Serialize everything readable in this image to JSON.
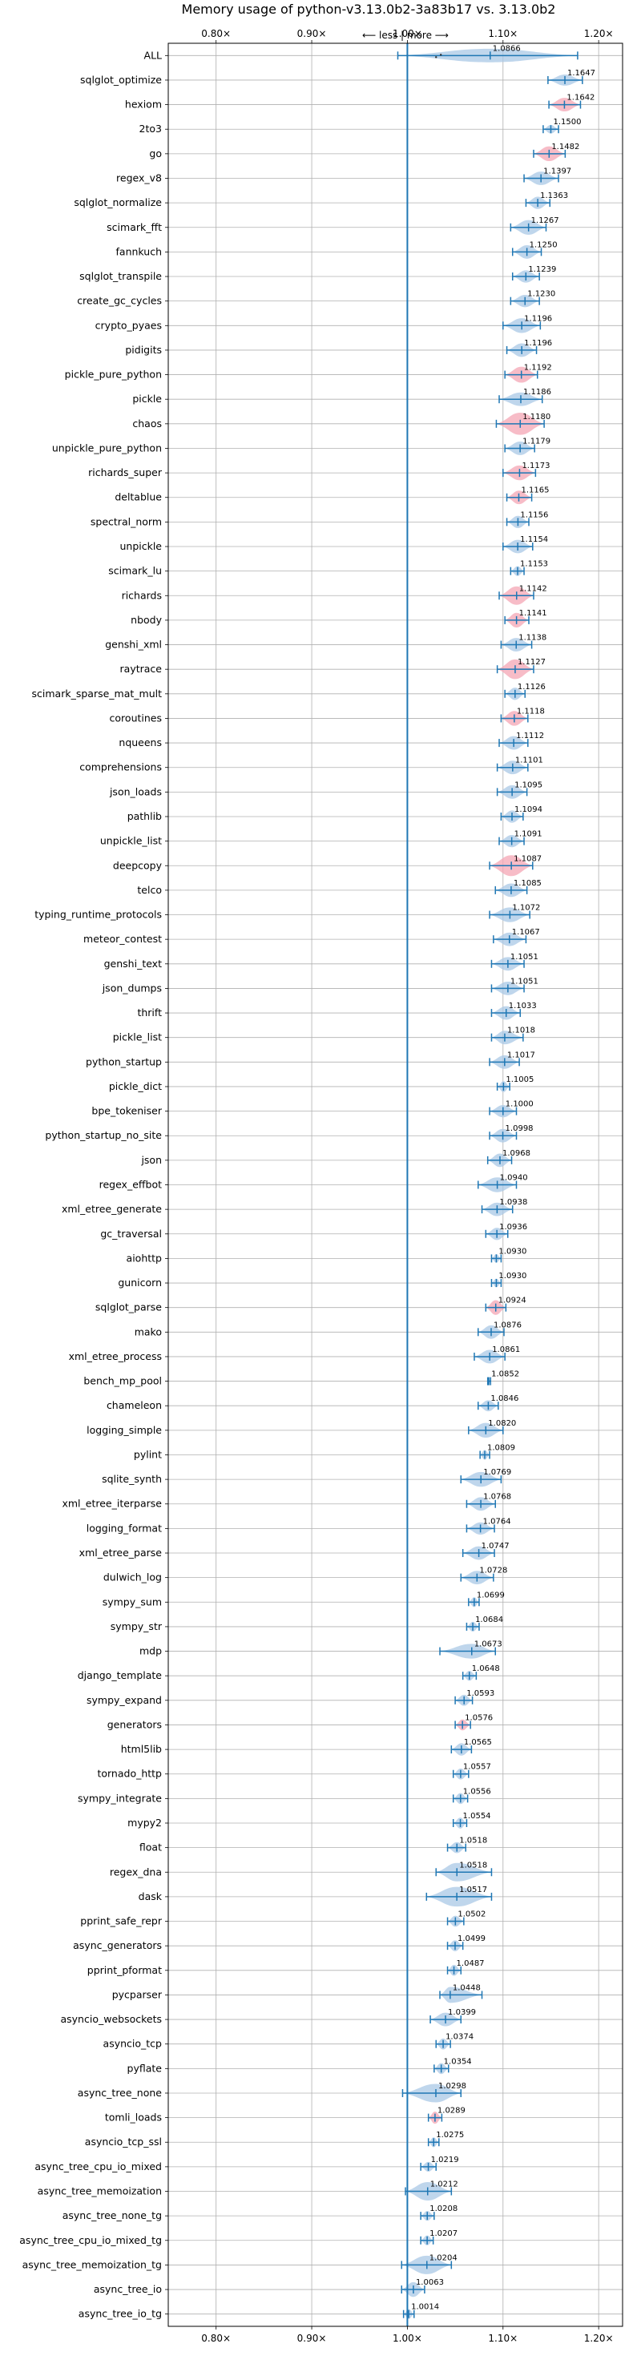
{
  "chart_data": {
    "type": "violin",
    "title": "Memory usage of python-v3.13.0b2-3a83b17 vs. 3.13.0b2",
    "axis_annotation": "⟵ less  |  more ⟶",
    "xlim": [
      0.75,
      1.225
    ],
    "x_ticks": [
      0.8,
      0.9,
      1.0,
      1.1,
      1.2
    ],
    "x_tick_labels": [
      "0.80×",
      "0.90×",
      "1.00×",
      "1.10×",
      "1.20×"
    ],
    "reference_line": 1.0,
    "grid": true,
    "colors": {
      "violin_blue": "#a9c8e6",
      "violin_red": "#f4a6b4",
      "stroke": "#1f77b4",
      "grid": "#b0b0b0"
    },
    "benchmarks": [
      {
        "name": "ALL",
        "value": 1.0866,
        "lo": 0.99,
        "hi": 1.178,
        "width": 0.55,
        "color": "blue",
        "label": "1.0866"
      },
      {
        "name": "sqlglot_optimize",
        "value": 1.1647,
        "lo": 1.147,
        "hi": 1.183,
        "width": 0.45,
        "color": "blue",
        "label": "1.1647"
      },
      {
        "name": "hexiom",
        "value": 1.1642,
        "lo": 1.148,
        "hi": 1.181,
        "width": 0.55,
        "color": "red",
        "label": "1.1642"
      },
      {
        "name": "2to3",
        "value": 1.15,
        "lo": 1.142,
        "hi": 1.158,
        "width": 0.35,
        "color": "blue",
        "label": "1.1500"
      },
      {
        "name": "go",
        "value": 1.1482,
        "lo": 1.132,
        "hi": 1.165,
        "width": 0.6,
        "color": "red",
        "label": "1.1482"
      },
      {
        "name": "regex_v8",
        "value": 1.1397,
        "lo": 1.122,
        "hi": 1.158,
        "width": 0.55,
        "color": "blue",
        "label": "1.1397"
      },
      {
        "name": "sqlglot_normalize",
        "value": 1.1363,
        "lo": 1.124,
        "hi": 1.149,
        "width": 0.5,
        "color": "blue",
        "label": "1.1363"
      },
      {
        "name": "scimark_fft",
        "value": 1.1267,
        "lo": 1.108,
        "hi": 1.145,
        "width": 0.6,
        "color": "blue",
        "label": "1.1267"
      },
      {
        "name": "fannkuch",
        "value": 1.125,
        "lo": 1.11,
        "hi": 1.14,
        "width": 0.55,
        "color": "blue",
        "label": "1.1250"
      },
      {
        "name": "sqlglot_transpile",
        "value": 1.1239,
        "lo": 1.11,
        "hi": 1.138,
        "width": 0.5,
        "color": "blue",
        "label": "1.1239"
      },
      {
        "name": "create_gc_cycles",
        "value": 1.123,
        "lo": 1.108,
        "hi": 1.138,
        "width": 0.5,
        "color": "blue",
        "label": "1.1230"
      },
      {
        "name": "crypto_pyaes",
        "value": 1.1196,
        "lo": 1.1,
        "hi": 1.139,
        "width": 0.6,
        "color": "blue",
        "label": "1.1196"
      },
      {
        "name": "pidigits",
        "value": 1.1196,
        "lo": 1.104,
        "hi": 1.135,
        "width": 0.55,
        "color": "blue",
        "label": "1.1196"
      },
      {
        "name": "pickle_pure_python",
        "value": 1.1192,
        "lo": 1.102,
        "hi": 1.136,
        "width": 0.65,
        "color": "red",
        "label": "1.1192"
      },
      {
        "name": "pickle",
        "value": 1.1186,
        "lo": 1.096,
        "hi": 1.141,
        "width": 0.55,
        "color": "blue",
        "label": "1.1186"
      },
      {
        "name": "chaos",
        "value": 1.118,
        "lo": 1.093,
        "hi": 1.143,
        "width": 0.9,
        "color": "red",
        "label": "1.1180"
      },
      {
        "name": "unpickle_pure_python",
        "value": 1.1179,
        "lo": 1.102,
        "hi": 1.133,
        "width": 0.55,
        "color": "blue",
        "label": "1.1179"
      },
      {
        "name": "richards_super",
        "value": 1.1173,
        "lo": 1.1,
        "hi": 1.134,
        "width": 0.6,
        "color": "red",
        "label": "1.1173"
      },
      {
        "name": "deltablue",
        "value": 1.1165,
        "lo": 1.104,
        "hi": 1.13,
        "width": 0.55,
        "color": "red",
        "label": "1.1165"
      },
      {
        "name": "spectral_norm",
        "value": 1.1156,
        "lo": 1.104,
        "hi": 1.127,
        "width": 0.5,
        "color": "blue",
        "label": "1.1156"
      },
      {
        "name": "unpickle",
        "value": 1.1154,
        "lo": 1.1,
        "hi": 1.131,
        "width": 0.55,
        "color": "blue",
        "label": "1.1154"
      },
      {
        "name": "scimark_lu",
        "value": 1.1153,
        "lo": 1.108,
        "hi": 1.122,
        "width": 0.4,
        "color": "blue",
        "label": "1.1153"
      },
      {
        "name": "richards",
        "value": 1.1142,
        "lo": 1.096,
        "hi": 1.132,
        "width": 0.75,
        "color": "red",
        "label": "1.1142"
      },
      {
        "name": "nbody",
        "value": 1.1141,
        "lo": 1.102,
        "hi": 1.127,
        "width": 0.6,
        "color": "red",
        "label": "1.1141"
      },
      {
        "name": "genshi_xml",
        "value": 1.1138,
        "lo": 1.098,
        "hi": 1.13,
        "width": 0.55,
        "color": "blue",
        "label": "1.1138"
      },
      {
        "name": "raytrace",
        "value": 1.1127,
        "lo": 1.094,
        "hi": 1.132,
        "width": 0.8,
        "color": "red",
        "label": "1.1127"
      },
      {
        "name": "scimark_sparse_mat_mult",
        "value": 1.1126,
        "lo": 1.102,
        "hi": 1.123,
        "width": 0.5,
        "color": "blue",
        "label": "1.1126"
      },
      {
        "name": "coroutines",
        "value": 1.1118,
        "lo": 1.098,
        "hi": 1.126,
        "width": 0.6,
        "color": "red",
        "label": "1.1118"
      },
      {
        "name": "nqueens",
        "value": 1.1112,
        "lo": 1.096,
        "hi": 1.126,
        "width": 0.55,
        "color": "blue",
        "label": "1.1112"
      },
      {
        "name": "comprehensions",
        "value": 1.1101,
        "lo": 1.094,
        "hi": 1.126,
        "width": 0.55,
        "color": "blue",
        "label": "1.1101"
      },
      {
        "name": "json_loads",
        "value": 1.1095,
        "lo": 1.094,
        "hi": 1.125,
        "width": 0.55,
        "color": "blue",
        "label": "1.1095"
      },
      {
        "name": "pathlib",
        "value": 1.1094,
        "lo": 1.098,
        "hi": 1.121,
        "width": 0.5,
        "color": "blue",
        "label": "1.1094"
      },
      {
        "name": "unpickle_list",
        "value": 1.1091,
        "lo": 1.096,
        "hi": 1.122,
        "width": 0.5,
        "color": "blue",
        "label": "1.1091"
      },
      {
        "name": "deepcopy",
        "value": 1.1087,
        "lo": 1.086,
        "hi": 1.131,
        "width": 0.85,
        "color": "red",
        "label": "1.1087"
      },
      {
        "name": "telco",
        "value": 1.1085,
        "lo": 1.092,
        "hi": 1.125,
        "width": 0.55,
        "color": "blue",
        "label": "1.1085"
      },
      {
        "name": "typing_runtime_protocols",
        "value": 1.1072,
        "lo": 1.086,
        "hi": 1.128,
        "width": 0.6,
        "color": "blue",
        "label": "1.1072"
      },
      {
        "name": "meteor_contest",
        "value": 1.1067,
        "lo": 1.09,
        "hi": 1.124,
        "width": 0.55,
        "color": "blue",
        "label": "1.1067"
      },
      {
        "name": "genshi_text",
        "value": 1.1051,
        "lo": 1.088,
        "hi": 1.122,
        "width": 0.55,
        "color": "blue",
        "label": "1.1051"
      },
      {
        "name": "json_dumps",
        "value": 1.1051,
        "lo": 1.088,
        "hi": 1.122,
        "width": 0.55,
        "color": "blue",
        "label": "1.1051"
      },
      {
        "name": "thrift",
        "value": 1.1033,
        "lo": 1.088,
        "hi": 1.118,
        "width": 0.55,
        "color": "blue",
        "label": "1.1033"
      },
      {
        "name": "pickle_list",
        "value": 1.1018,
        "lo": 1.088,
        "hi": 1.121,
        "width": 0.55,
        "color": "blue",
        "label": "1.1018"
      },
      {
        "name": "python_startup",
        "value": 1.1017,
        "lo": 1.086,
        "hi": 1.117,
        "width": 0.55,
        "color": "blue",
        "label": "1.1017"
      },
      {
        "name": "pickle_dict",
        "value": 1.1005,
        "lo": 1.094,
        "hi": 1.107,
        "width": 0.45,
        "color": "blue",
        "label": "1.1005"
      },
      {
        "name": "bpe_tokeniser",
        "value": 1.1,
        "lo": 1.086,
        "hi": 1.114,
        "width": 0.5,
        "color": "blue",
        "label": "1.1000"
      },
      {
        "name": "python_startup_no_site",
        "value": 1.0998,
        "lo": 1.086,
        "hi": 1.114,
        "width": 0.55,
        "color": "blue",
        "label": "1.0998"
      },
      {
        "name": "json",
        "value": 1.0968,
        "lo": 1.084,
        "hi": 1.109,
        "width": 0.55,
        "color": "blue",
        "label": "1.0968"
      },
      {
        "name": "regex_effbot",
        "value": 1.094,
        "lo": 1.074,
        "hi": 1.114,
        "width": 0.6,
        "color": "blue",
        "label": "1.0940"
      },
      {
        "name": "xml_etree_generate",
        "value": 1.0938,
        "lo": 1.078,
        "hi": 1.11,
        "width": 0.55,
        "color": "blue",
        "label": "1.0938"
      },
      {
        "name": "gc_traversal",
        "value": 1.0936,
        "lo": 1.082,
        "hi": 1.105,
        "width": 0.5,
        "color": "blue",
        "label": "1.0936"
      },
      {
        "name": "aiohttp",
        "value": 1.093,
        "lo": 1.088,
        "hi": 1.098,
        "width": 0.35,
        "color": "blue",
        "label": "1.0930"
      },
      {
        "name": "gunicorn",
        "value": 1.093,
        "lo": 1.088,
        "hi": 1.098,
        "width": 0.35,
        "color": "blue",
        "label": "1.0930"
      },
      {
        "name": "sqlglot_parse",
        "value": 1.0924,
        "lo": 1.082,
        "hi": 1.103,
        "width": 0.6,
        "color": "red",
        "label": "1.0924"
      },
      {
        "name": "mako",
        "value": 1.0876,
        "lo": 1.074,
        "hi": 1.101,
        "width": 0.55,
        "color": "blue",
        "label": "1.0876"
      },
      {
        "name": "xml_etree_process",
        "value": 1.0861,
        "lo": 1.07,
        "hi": 1.102,
        "width": 0.55,
        "color": "blue",
        "label": "1.0861"
      },
      {
        "name": "bench_mp_pool",
        "value": 1.0852,
        "lo": 1.084,
        "hi": 1.087,
        "width": 0.15,
        "color": "blue",
        "label": "1.0852"
      },
      {
        "name": "chameleon",
        "value": 1.0846,
        "lo": 1.074,
        "hi": 1.095,
        "width": 0.45,
        "color": "blue",
        "label": "1.0846"
      },
      {
        "name": "logging_simple",
        "value": 1.082,
        "lo": 1.064,
        "hi": 1.1,
        "width": 0.6,
        "color": "blue",
        "label": "1.0820"
      },
      {
        "name": "pylint",
        "value": 1.0809,
        "lo": 1.076,
        "hi": 1.086,
        "width": 0.4,
        "color": "blue",
        "label": "1.0809"
      },
      {
        "name": "sqlite_synth",
        "value": 1.0769,
        "lo": 1.056,
        "hi": 1.098,
        "width": 0.6,
        "color": "blue",
        "label": "1.0769"
      },
      {
        "name": "xml_etree_iterparse",
        "value": 1.0768,
        "lo": 1.062,
        "hi": 1.092,
        "width": 0.55,
        "color": "blue",
        "label": "1.0768"
      },
      {
        "name": "logging_format",
        "value": 1.0764,
        "lo": 1.062,
        "hi": 1.091,
        "width": 0.5,
        "color": "blue",
        "label": "1.0764"
      },
      {
        "name": "xml_etree_parse",
        "value": 1.0747,
        "lo": 1.058,
        "hi": 1.091,
        "width": 0.55,
        "color": "blue",
        "label": "1.0747"
      },
      {
        "name": "dulwich_log",
        "value": 1.0728,
        "lo": 1.056,
        "hi": 1.09,
        "width": 0.55,
        "color": "blue",
        "label": "1.0728"
      },
      {
        "name": "sympy_sum",
        "value": 1.0699,
        "lo": 1.064,
        "hi": 1.075,
        "width": 0.4,
        "color": "blue",
        "label": "1.0699"
      },
      {
        "name": "sympy_str",
        "value": 1.0684,
        "lo": 1.062,
        "hi": 1.075,
        "width": 0.4,
        "color": "blue",
        "label": "1.0684"
      },
      {
        "name": "mdp",
        "value": 1.0673,
        "lo": 1.034,
        "hi": 1.092,
        "width": 0.6,
        "color": "blue",
        "label": "1.0673"
      },
      {
        "name": "django_template",
        "value": 1.0648,
        "lo": 1.058,
        "hi": 1.072,
        "width": 0.4,
        "color": "blue",
        "label": "1.0648"
      },
      {
        "name": "sympy_expand",
        "value": 1.0593,
        "lo": 1.05,
        "hi": 1.068,
        "width": 0.45,
        "color": "blue",
        "label": "1.0593"
      },
      {
        "name": "generators",
        "value": 1.0576,
        "lo": 1.05,
        "hi": 1.066,
        "width": 0.45,
        "color": "red",
        "label": "1.0576"
      },
      {
        "name": "html5lib",
        "value": 1.0565,
        "lo": 1.046,
        "hi": 1.067,
        "width": 0.5,
        "color": "blue",
        "label": "1.0565"
      },
      {
        "name": "tornado_http",
        "value": 1.0557,
        "lo": 1.048,
        "hi": 1.064,
        "width": 0.45,
        "color": "blue",
        "label": "1.0557"
      },
      {
        "name": "sympy_integrate",
        "value": 1.0556,
        "lo": 1.048,
        "hi": 1.063,
        "width": 0.45,
        "color": "blue",
        "label": "1.0556"
      },
      {
        "name": "mypy2",
        "value": 1.0554,
        "lo": 1.048,
        "hi": 1.062,
        "width": 0.45,
        "color": "blue",
        "label": "1.0554"
      },
      {
        "name": "float",
        "value": 1.0518,
        "lo": 1.042,
        "hi": 1.061,
        "width": 0.45,
        "color": "blue",
        "label": "1.0518"
      },
      {
        "name": "regex_dna",
        "value": 1.0518,
        "lo": 1.03,
        "hi": 1.088,
        "width": 0.75,
        "color": "blue",
        "label": "1.0518"
      },
      {
        "name": "dask",
        "value": 1.0517,
        "lo": 1.02,
        "hi": 1.088,
        "width": 0.8,
        "color": "blue",
        "label": "1.0517"
      },
      {
        "name": "pprint_safe_repr",
        "value": 1.0502,
        "lo": 1.042,
        "hi": 1.059,
        "width": 0.45,
        "color": "blue",
        "label": "1.0502"
      },
      {
        "name": "async_generators",
        "value": 1.0499,
        "lo": 1.042,
        "hi": 1.058,
        "width": 0.45,
        "color": "blue",
        "label": "1.0499"
      },
      {
        "name": "pprint_pformat",
        "value": 1.0487,
        "lo": 1.042,
        "hi": 1.056,
        "width": 0.45,
        "color": "blue",
        "label": "1.0487"
      },
      {
        "name": "pycparser",
        "value": 1.0448,
        "lo": 1.034,
        "hi": 1.078,
        "width": 0.65,
        "color": "blue",
        "label": "1.0448"
      },
      {
        "name": "asyncio_websockets",
        "value": 1.0399,
        "lo": 1.024,
        "hi": 1.056,
        "width": 0.55,
        "color": "blue",
        "label": "1.0399"
      },
      {
        "name": "asyncio_tcp",
        "value": 1.0374,
        "lo": 1.03,
        "hi": 1.045,
        "width": 0.45,
        "color": "blue",
        "label": "1.0374"
      },
      {
        "name": "pyflate",
        "value": 1.0354,
        "lo": 1.028,
        "hi": 1.043,
        "width": 0.45,
        "color": "blue",
        "label": "1.0354"
      },
      {
        "name": "async_tree_none",
        "value": 1.0298,
        "lo": 0.995,
        "hi": 1.056,
        "width": 0.75,
        "color": "blue",
        "label": "1.0298"
      },
      {
        "name": "tomli_loads",
        "value": 1.0289,
        "lo": 1.022,
        "hi": 1.036,
        "width": 0.5,
        "color": "red",
        "label": "1.0289"
      },
      {
        "name": "asyncio_tcp_ssl",
        "value": 1.0275,
        "lo": 1.022,
        "hi": 1.033,
        "width": 0.4,
        "color": "blue",
        "label": "1.0275"
      },
      {
        "name": "async_tree_cpu_io_mixed",
        "value": 1.0219,
        "lo": 1.014,
        "hi": 1.03,
        "width": 0.4,
        "color": "blue",
        "label": "1.0219"
      },
      {
        "name": "async_tree_memoization",
        "value": 1.0212,
        "lo": 0.998,
        "hi": 1.046,
        "width": 0.75,
        "color": "blue",
        "label": "1.0212"
      },
      {
        "name": "async_tree_none_tg",
        "value": 1.0208,
        "lo": 1.014,
        "hi": 1.028,
        "width": 0.4,
        "color": "blue",
        "label": "1.0208"
      },
      {
        "name": "async_tree_cpu_io_mixed_tg",
        "value": 1.0207,
        "lo": 1.014,
        "hi": 1.027,
        "width": 0.4,
        "color": "blue",
        "label": "1.0207"
      },
      {
        "name": "async_tree_memoization_tg",
        "value": 1.0204,
        "lo": 0.994,
        "hi": 1.046,
        "width": 0.75,
        "color": "blue",
        "label": "1.0204"
      },
      {
        "name": "async_tree_io",
        "value": 1.0063,
        "lo": 0.994,
        "hi": 1.018,
        "width": 0.6,
        "color": "blue",
        "label": "1.0063"
      },
      {
        "name": "async_tree_io_tg",
        "value": 1.0014,
        "lo": 0.996,
        "hi": 1.007,
        "width": 0.4,
        "color": "blue",
        "label": "1.0014"
      }
    ]
  }
}
